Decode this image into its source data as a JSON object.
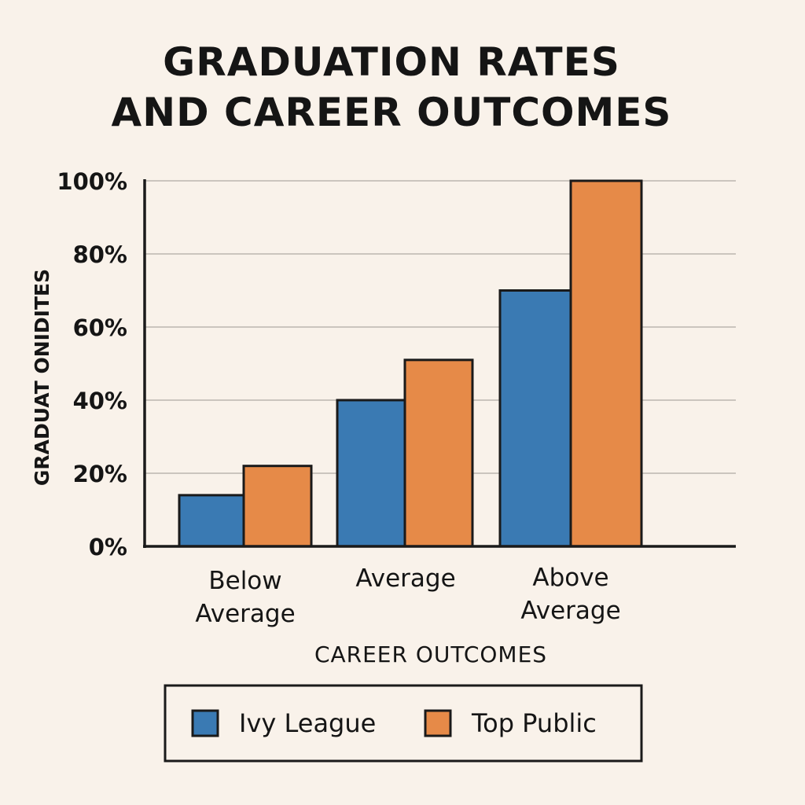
{
  "chart_data": {
    "type": "bar",
    "title_lines": [
      "GRADUATION RATES",
      "AND CAREER OUTCOMES"
    ],
    "xlabel": "CAREER OUTCOMES",
    "ylabel": "GRADUAT ONIDITES",
    "categories": [
      [
        "Below",
        "Average"
      ],
      [
        "Average"
      ],
      [
        "Above",
        "Average"
      ]
    ],
    "series": [
      {
        "name": "Ivy League",
        "color": "#3a7ab3",
        "values": [
          14,
          40,
          70
        ]
      },
      {
        "name": "Top Public",
        "color": "#e68a48",
        "values": [
          22,
          51,
          100
        ]
      }
    ],
    "ylim": [
      0,
      100
    ],
    "yticks": [
      "0%",
      "20%",
      "40%",
      "60%",
      "80%",
      "100%"
    ],
    "grid": true,
    "legend_position": "bottom"
  }
}
